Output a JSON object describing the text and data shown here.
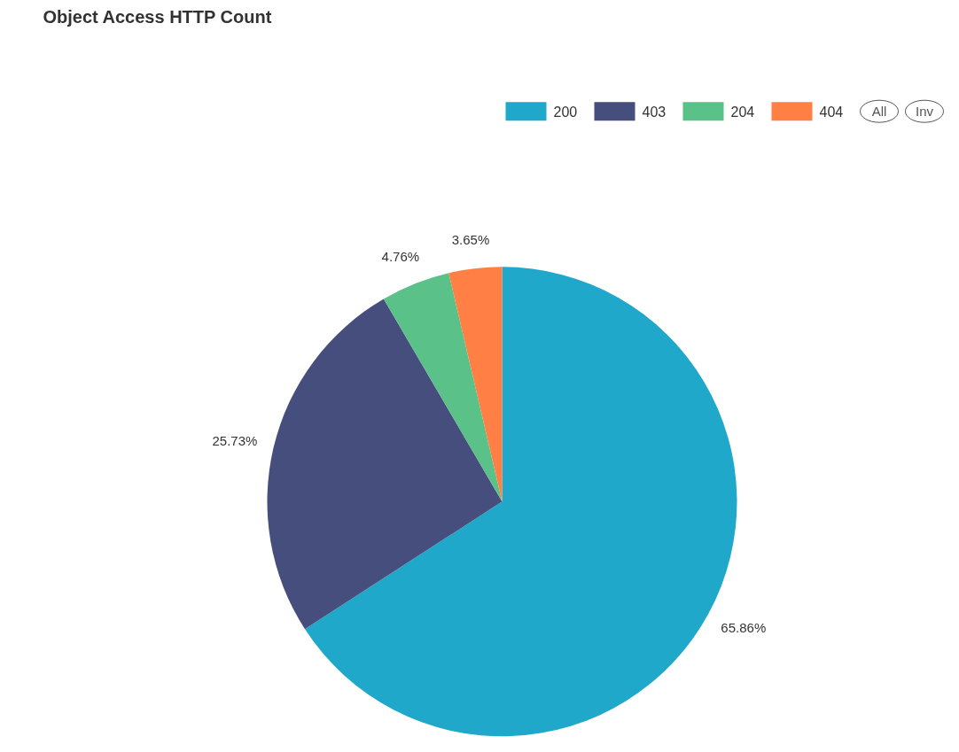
{
  "chart_data": {
    "type": "pie",
    "title": "Object Access HTTP Count",
    "categories": [
      "200",
      "403",
      "204",
      "404"
    ],
    "values": [
      65.86,
      25.73,
      4.76,
      3.65
    ],
    "colors": [
      "#1fa8c9",
      "#454e7c",
      "#5ac189",
      "#ff7f44"
    ],
    "value_labels": [
      "65.86%",
      "25.73%",
      "4.76%",
      "3.65%"
    ],
    "legend": "top right",
    "annotations": [
      "All",
      "Inv"
    ]
  }
}
